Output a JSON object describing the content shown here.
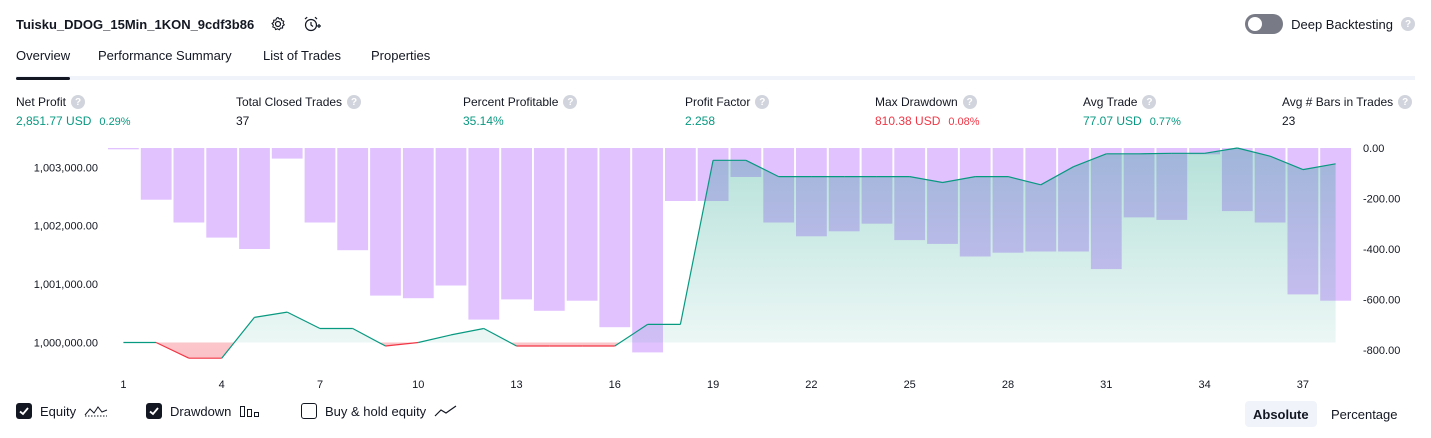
{
  "header": {
    "strategy_name": "Tuisku_DDOG_15Min_1KON_9cdf3b86",
    "settings_icon": "gear-icon",
    "alert_icon": "add-alarm-icon",
    "deep_backtesting_label": "Deep Backtesting",
    "deep_backtesting_enabled": false,
    "help_glyph": "?"
  },
  "tabs": [
    {
      "label": "Overview",
      "active": true
    },
    {
      "label": "Performance Summary",
      "active": false
    },
    {
      "label": "List of Trades",
      "active": false
    },
    {
      "label": "Properties",
      "active": false
    }
  ],
  "metrics": [
    {
      "label": "Net Profit",
      "value": "2,851.77 USD",
      "pct": "0.29%",
      "tone": "green"
    },
    {
      "label": "Total Closed Trades",
      "value": "37",
      "pct": "",
      "tone": "dark"
    },
    {
      "label": "Percent Profitable",
      "value": "35.14%",
      "pct": "",
      "tone": "green"
    },
    {
      "label": "Profit Factor",
      "value": "2.258",
      "pct": "",
      "tone": "green"
    },
    {
      "label": "Max Drawdown",
      "value": "810.38 USD",
      "pct": "0.08%",
      "tone": "red"
    },
    {
      "label": "Avg Trade",
      "value": "77.07 USD",
      "pct": "0.77%",
      "tone": "green"
    },
    {
      "label": "Avg # Bars in Trades",
      "value": "23",
      "pct": "",
      "tone": "dark"
    }
  ],
  "legend": {
    "equity": {
      "label": "Equity",
      "checked": true
    },
    "drawdown": {
      "label": "Drawdown",
      "checked": true
    },
    "buy_hold": {
      "label": "Buy & hold equity",
      "checked": false
    }
  },
  "view_mode": {
    "absolute": "Absolute",
    "percentage": "Percentage",
    "selected": "Absolute"
  },
  "chart_data": {
    "type": "line",
    "x_ticks": [
      1,
      4,
      7,
      10,
      13,
      16,
      19,
      22,
      25,
      28,
      31,
      34,
      37
    ],
    "left_axis": {
      "ticks": [
        1000000,
        1001000,
        1002000,
        1003000
      ],
      "tick_labels": [
        "1,000,000.00",
        "1,001,000.00",
        "1,002,000.00",
        "1,003,000.00"
      ],
      "range": [
        999700,
        1003330
      ]
    },
    "right_axis": {
      "ticks": [
        0,
        -200,
        -400,
        -600,
        -800
      ],
      "tick_labels": [
        "0.00",
        "-200.00",
        "-400.00",
        "-600.00",
        "-800.00"
      ],
      "range": [
        0,
        -840
      ]
    },
    "baseline": 1000000,
    "series": [
      {
        "kind": "equity_line",
        "x": [
          1,
          2,
          3,
          4,
          5,
          6,
          7,
          8,
          9,
          10,
          11,
          12,
          13,
          14,
          15,
          16,
          17,
          18,
          19,
          20,
          21,
          22,
          23,
          24,
          25,
          26,
          27,
          28,
          29,
          30,
          31,
          32,
          33,
          34,
          35,
          36,
          37,
          38
        ],
        "values": [
          1000000,
          1000000,
          999730,
          999730,
          1000430,
          1000520,
          1000240,
          1000240,
          999940,
          1000000,
          1000130,
          1000240,
          999940,
          999940,
          999940,
          999940,
          1000310,
          1000310,
          1003120,
          1003120,
          1002840,
          1002840,
          1002840,
          1002840,
          1002840,
          1002740,
          1002840,
          1002840,
          1002700,
          1003010,
          1003230,
          1003230,
          1003240,
          1003240,
          1003330,
          1003190,
          1002960,
          1003060
        ],
        "up_color": "#089981",
        "down_color": "#f23645"
      },
      {
        "kind": "drawdown_bars",
        "x": [
          1,
          2,
          3,
          4,
          5,
          6,
          7,
          8,
          9,
          10,
          11,
          12,
          13,
          14,
          15,
          16,
          17,
          18,
          19,
          20,
          21,
          22,
          23,
          24,
          25,
          26,
          27,
          28,
          29,
          30,
          31,
          32,
          33,
          34,
          35,
          36,
          37,
          38
        ],
        "values": [
          -5,
          -205,
          -295,
          -355,
          -400,
          -42,
          -295,
          -405,
          -585,
          -595,
          -545,
          -680,
          -600,
          -645,
          -605,
          -710,
          -810,
          -210,
          -210,
          -115,
          -295,
          -350,
          -330,
          -300,
          -365,
          -380,
          -430,
          -415,
          -410,
          -410,
          -480,
          -275,
          -285,
          -25,
          -250,
          -295,
          -580,
          -605
        ],
        "color": "#e1c2ff"
      }
    ]
  }
}
